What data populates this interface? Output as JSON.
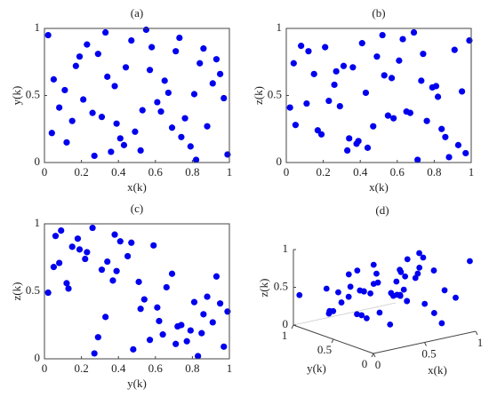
{
  "chart_data": [
    {
      "type": "scatter",
      "title": "(a)",
      "x_label": "x(k)",
      "y_label": "y(k)",
      "color": "#0000ee",
      "xlim": [
        0,
        1
      ],
      "ylim": [
        0,
        1
      ],
      "xticks": [
        0,
        0.2,
        0.4,
        0.6,
        0.8,
        1
      ],
      "yticks": [
        0,
        0.5,
        1
      ],
      "x": [
        0.05,
        0.12,
        0.23,
        0.31,
        0.44,
        0.52,
        0.67,
        0.73,
        0.88,
        0.95,
        0.08,
        0.19,
        0.27,
        0.38,
        0.49,
        0.58,
        0.63,
        0.79,
        0.84,
        0.97,
        0.02,
        0.15,
        0.34,
        0.41,
        0.55,
        0.61,
        0.71,
        0.82,
        0.91,
        0.26,
        0.47,
        0.36,
        0.69,
        0.93,
        0.11,
        0.57,
        0.76,
        0.21,
        0.43,
        0.86,
        0.04,
        0.33,
        0.65,
        0.99,
        0.17,
        0.53,
        0.81,
        0.29,
        0.74,
        0.39
      ],
      "y": [
        0.62,
        0.15,
        0.88,
        0.34,
        0.71,
        0.09,
        0.52,
        0.93,
        0.27,
        0.66,
        0.41,
        0.79,
        0.05,
        0.57,
        0.23,
        0.86,
        0.38,
        0.12,
        0.74,
        0.48,
        0.95,
        0.31,
        0.64,
        0.18,
        0.99,
        0.45,
        0.83,
        0.02,
        0.59,
        0.37,
        0.91,
        0.08,
        0.26,
        0.77,
        0.54,
        0.69,
        0.33,
        0.47,
        0.13,
        0.85,
        0.22,
        0.97,
        0.61,
        0.06,
        0.72,
        0.39,
        0.51,
        0.81,
        0.19,
        0.29
      ]
    },
    {
      "type": "scatter",
      "title": "(b)",
      "x_label": "x(k)",
      "y_label": "z(k)",
      "color": "#0000ee",
      "xlim": [
        0,
        1
      ],
      "ylim": [
        0,
        1
      ],
      "xticks": [
        0,
        0.2,
        0.4,
        0.6,
        0.8,
        1
      ],
      "yticks": [
        0,
        0.5,
        1
      ],
      "x": [
        0.05,
        0.12,
        0.23,
        0.31,
        0.44,
        0.52,
        0.67,
        0.73,
        0.88,
        0.95,
        0.08,
        0.19,
        0.27,
        0.38,
        0.49,
        0.58,
        0.63,
        0.79,
        0.84,
        0.97,
        0.02,
        0.15,
        0.34,
        0.41,
        0.55,
        0.61,
        0.71,
        0.82,
        0.91,
        0.26,
        0.47,
        0.36,
        0.69,
        0.93,
        0.11,
        0.57,
        0.76,
        0.21,
        0.43,
        0.86,
        0.04,
        0.33,
        0.65,
        0.99,
        0.17,
        0.53,
        0.81,
        0.29,
        0.74,
        0.39
      ],
      "y": [
        0.28,
        0.83,
        0.46,
        0.72,
        0.11,
        0.95,
        0.37,
        0.61,
        0.04,
        0.53,
        0.87,
        0.21,
        0.68,
        0.14,
        0.79,
        0.33,
        0.92,
        0.56,
        0.25,
        0.07,
        0.41,
        0.66,
        0.18,
        0.89,
        0.35,
        0.76,
        0.02,
        0.49,
        0.84,
        0.58,
        0.27,
        0.71,
        0.97,
        0.13,
        0.44,
        0.63,
        0.31,
        0.86,
        0.52,
        0.19,
        0.74,
        0.09,
        0.38,
        0.91,
        0.24,
        0.65,
        0.57,
        0.42,
        0.81,
        0.16
      ]
    },
    {
      "type": "scatter",
      "title": "(c)",
      "x_label": "y(k)",
      "y_label": "z(k)",
      "color": "#0000ee",
      "xlim": [
        0,
        1
      ],
      "ylim": [
        0,
        1
      ],
      "xticks": [
        0,
        0.2,
        0.4,
        0.6,
        0.8,
        1
      ],
      "yticks": [
        0,
        0.5,
        1
      ],
      "x": [
        0.62,
        0.15,
        0.88,
        0.34,
        0.71,
        0.09,
        0.52,
        0.93,
        0.27,
        0.66,
        0.41,
        0.79,
        0.05,
        0.57,
        0.23,
        0.86,
        0.38,
        0.12,
        0.74,
        0.48,
        0.95,
        0.31,
        0.64,
        0.18,
        0.99,
        0.45,
        0.83,
        0.02,
        0.59,
        0.37,
        0.91,
        0.08,
        0.26,
        0.77,
        0.54,
        0.69,
        0.33,
        0.47,
        0.13,
        0.85,
        0.22,
        0.97,
        0.61,
        0.06,
        0.72,
        0.39,
        0.51,
        0.81,
        0.19,
        0.29
      ],
      "y": [
        0.28,
        0.83,
        0.46,
        0.72,
        0.11,
        0.95,
        0.37,
        0.61,
        0.04,
        0.53,
        0.87,
        0.21,
        0.68,
        0.14,
        0.79,
        0.33,
        0.92,
        0.56,
        0.25,
        0.07,
        0.41,
        0.66,
        0.18,
        0.89,
        0.35,
        0.76,
        0.02,
        0.49,
        0.84,
        0.58,
        0.27,
        0.71,
        0.97,
        0.13,
        0.44,
        0.63,
        0.31,
        0.86,
        0.52,
        0.19,
        0.74,
        0.09,
        0.38,
        0.91,
        0.24,
        0.65,
        0.57,
        0.42,
        0.81,
        0.16
      ]
    },
    {
      "type": "scatter3d",
      "title": "(d)",
      "x_label": "x(k)",
      "y_label": "y(k)",
      "z_label": "z(k)",
      "color": "#0000ee",
      "xlim": [
        0,
        1
      ],
      "ylim": [
        0,
        1
      ],
      "zlim": [
        0,
        1
      ],
      "xticks": [
        0,
        0.5,
        1
      ],
      "yticks": [
        0,
        0.5,
        1
      ],
      "zticks": [
        0,
        0.5,
        1
      ],
      "x": [
        0.05,
        0.12,
        0.23,
        0.31,
        0.44,
        0.52,
        0.67,
        0.73,
        0.88,
        0.95,
        0.08,
        0.19,
        0.27,
        0.38,
        0.49,
        0.58,
        0.63,
        0.79,
        0.84,
        0.97,
        0.02,
        0.15,
        0.34,
        0.41,
        0.55,
        0.61,
        0.71,
        0.82,
        0.91,
        0.26,
        0.47,
        0.36,
        0.69,
        0.93,
        0.11,
        0.57,
        0.76,
        0.21,
        0.43,
        0.86,
        0.04,
        0.33,
        0.65,
        0.99,
        0.17,
        0.53,
        0.81,
        0.29,
        0.74,
        0.39
      ],
      "y": [
        0.62,
        0.15,
        0.88,
        0.34,
        0.71,
        0.09,
        0.52,
        0.93,
        0.27,
        0.66,
        0.41,
        0.79,
        0.05,
        0.57,
        0.23,
        0.86,
        0.38,
        0.12,
        0.74,
        0.48,
        0.95,
        0.31,
        0.64,
        0.18,
        0.99,
        0.45,
        0.83,
        0.02,
        0.59,
        0.37,
        0.91,
        0.08,
        0.26,
        0.77,
        0.54,
        0.69,
        0.33,
        0.47,
        0.13,
        0.85,
        0.22,
        0.97,
        0.61,
        0.06,
        0.72,
        0.39,
        0.51,
        0.81,
        0.19,
        0.29
      ],
      "z": [
        0.28,
        0.83,
        0.46,
        0.72,
        0.11,
        0.95,
        0.37,
        0.61,
        0.04,
        0.53,
        0.87,
        0.21,
        0.68,
        0.14,
        0.79,
        0.33,
        0.92,
        0.56,
        0.25,
        0.07,
        0.41,
        0.66,
        0.18,
        0.89,
        0.35,
        0.76,
        0.02,
        0.49,
        0.84,
        0.58,
        0.27,
        0.71,
        0.97,
        0.13,
        0.44,
        0.63,
        0.31,
        0.86,
        0.52,
        0.19,
        0.74,
        0.09,
        0.38,
        0.91,
        0.24,
        0.65,
        0.57,
        0.42,
        0.81,
        0.16
      ]
    }
  ]
}
